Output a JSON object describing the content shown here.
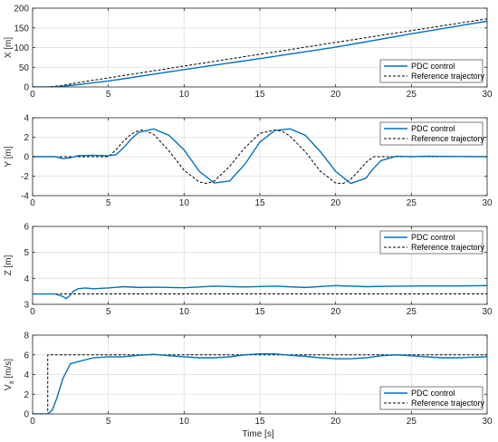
{
  "colors": {
    "pdc": "#0072BD",
    "ref": "#000000",
    "grid": "#e6e6e6",
    "axis": "#262626"
  },
  "xlabel": "Time [s]",
  "chart_data": [
    {
      "type": "line",
      "ylabel": "X [m]",
      "xlim": [
        0,
        30
      ],
      "ylim": [
        0,
        200
      ],
      "xticks": [
        "0",
        "5",
        "10",
        "15",
        "20",
        "25",
        "30"
      ],
      "yticks": [
        "0",
        "50",
        "100",
        "150",
        "200"
      ],
      "legend_position": "bottom-right",
      "grid": true,
      "series": [
        {
          "name": "PDC control",
          "style": "solid",
          "x": [
            0,
            1,
            1.5,
            2,
            3,
            5,
            10,
            15,
            20,
            25,
            30
          ],
          "y": [
            0,
            0,
            0.5,
            2,
            6,
            15,
            44,
            72,
            101,
            135,
            167
          ]
        },
        {
          "name": "Reference trajectory",
          "style": "dashed",
          "x": [
            0,
            1,
            2,
            3,
            5,
            10,
            15,
            20,
            25,
            30
          ],
          "y": [
            0,
            0,
            4,
            11,
            23,
            53,
            83,
            113,
            143,
            173
          ]
        }
      ]
    },
    {
      "type": "line",
      "ylabel": "Y [m]",
      "xlim": [
        0,
        30
      ],
      "ylim": [
        -4,
        4
      ],
      "xticks": [
        "0",
        "5",
        "10",
        "15",
        "20",
        "25",
        "30"
      ],
      "yticks": [
        "-4",
        "-2",
        "0",
        "2",
        "4"
      ],
      "legend_position": "top-right",
      "grid": true,
      "series": [
        {
          "name": "PDC control",
          "style": "solid",
          "x": [
            0,
            1.5,
            2,
            2.5,
            3,
            4,
            5,
            5.5,
            6,
            6.5,
            7,
            8,
            9,
            10,
            11,
            12,
            13,
            14,
            15,
            16,
            17,
            18,
            19,
            20,
            21,
            22,
            22.5,
            23,
            24,
            25,
            26,
            30
          ],
          "y": [
            0,
            0,
            -0.2,
            -0.1,
            0.1,
            0.15,
            0.1,
            0.2,
            0.9,
            1.8,
            2.5,
            2.85,
            2.2,
            0.7,
            -1.5,
            -2.7,
            -2.5,
            -0.8,
            1.5,
            2.7,
            2.85,
            2.2,
            0.5,
            -1.5,
            -2.75,
            -2.2,
            -1.2,
            -0.4,
            0.05,
            0,
            0.05,
            0
          ]
        },
        {
          "name": "Reference trajectory",
          "style": "dashed",
          "x": [
            0,
            5,
            5.5,
            6,
            6.5,
            7,
            7.3,
            8,
            9,
            10,
            11,
            11.5,
            12,
            13,
            14,
            15,
            16,
            16.5,
            17,
            18,
            19,
            20,
            20.5,
            21,
            21.5,
            22,
            22.5,
            30
          ],
          "y": [
            0,
            0,
            0.7,
            1.6,
            2.3,
            2.7,
            2.75,
            2.3,
            0.6,
            -1.4,
            -2.6,
            -2.75,
            -2.5,
            -1.0,
            0.9,
            2.4,
            2.75,
            2.6,
            2.1,
            0.5,
            -1.5,
            -2.7,
            -2.75,
            -2.3,
            -1.5,
            -0.6,
            0,
            0
          ]
        }
      ]
    },
    {
      "type": "line",
      "ylabel": "Z [m]",
      "xlim": [
        0,
        30
      ],
      "ylim": [
        3,
        6
      ],
      "xticks": [
        "0",
        "5",
        "10",
        "15",
        "20",
        "25",
        "30"
      ],
      "yticks": [
        "3",
        "4",
        "5",
        "6"
      ],
      "legend_position": "top-right",
      "grid": true,
      "series": [
        {
          "name": "PDC control",
          "style": "solid",
          "x": [
            0,
            1.5,
            2,
            2.2,
            2.4,
            2.7,
            3,
            3.5,
            4,
            5,
            6,
            7,
            8,
            10,
            12,
            14,
            16,
            18,
            20,
            22,
            24,
            26,
            28,
            30
          ],
          "y": [
            3.4,
            3.4,
            3.3,
            3.22,
            3.3,
            3.5,
            3.6,
            3.63,
            3.6,
            3.63,
            3.68,
            3.65,
            3.66,
            3.64,
            3.7,
            3.67,
            3.7,
            3.65,
            3.72,
            3.68,
            3.7,
            3.71,
            3.71,
            3.72
          ]
        },
        {
          "name": "Reference trajectory",
          "style": "dashed",
          "x": [
            0,
            30
          ],
          "y": [
            3.4,
            3.4
          ]
        }
      ]
    },
    {
      "type": "line",
      "ylabel": "V_x [m/s]",
      "ylabel_main": "V",
      "ylabel_sub": "x",
      "ylabel_unit": " [m/s]",
      "xlim": [
        0,
        30
      ],
      "ylim": [
        0,
        8
      ],
      "xticks": [
        "0",
        "5",
        "10",
        "15",
        "20",
        "25",
        "30"
      ],
      "yticks": [
        "0",
        "2",
        "4",
        "6",
        "8"
      ],
      "legend_position": "bottom-right",
      "grid": true,
      "series": [
        {
          "name": "PDC control",
          "style": "solid",
          "x": [
            0,
            1,
            1.3,
            1.6,
            2,
            2.5,
            3,
            4,
            5,
            6,
            7,
            8,
            9,
            10,
            11,
            12,
            13,
            14,
            15,
            16,
            17,
            18,
            19,
            20,
            21,
            22,
            23,
            24,
            25,
            26,
            27,
            28,
            29,
            30
          ],
          "y": [
            0,
            0,
            0.4,
            1.6,
            3.6,
            5.1,
            5.3,
            5.7,
            5.8,
            5.8,
            5.95,
            6.05,
            5.9,
            5.8,
            5.7,
            5.7,
            5.8,
            6.0,
            6.1,
            6.1,
            5.95,
            5.85,
            5.7,
            5.6,
            5.6,
            5.7,
            5.9,
            6.0,
            5.9,
            5.8,
            5.7,
            5.7,
            5.75,
            5.8
          ]
        },
        {
          "name": "Reference trajectory",
          "style": "dashed",
          "x": [
            0,
            1,
            1,
            30
          ],
          "y": [
            0,
            0,
            6,
            6
          ]
        }
      ]
    }
  ]
}
